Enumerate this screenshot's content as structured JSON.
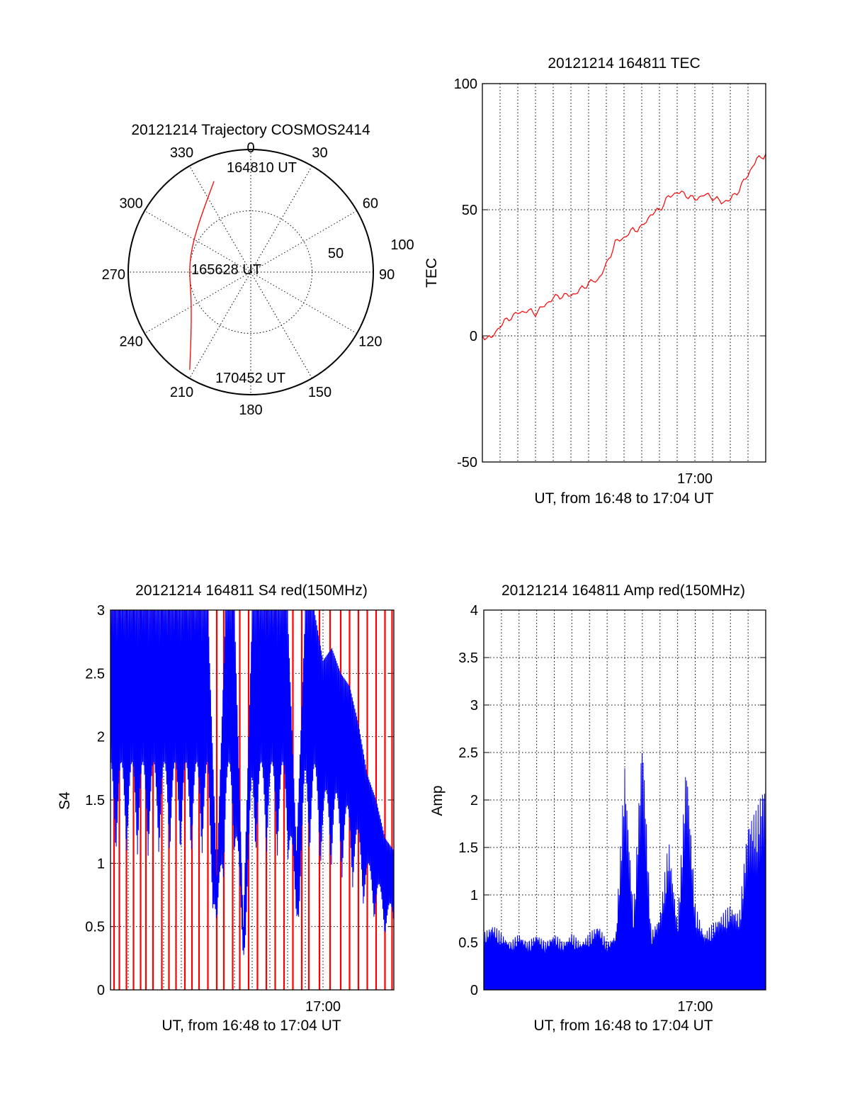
{
  "colors": {
    "red": "#ff0000",
    "blue": "#0000ff",
    "black": "#000000"
  },
  "chart_data": [
    {
      "type": "polar",
      "title": "20121214 Trajectory COSMOS2414",
      "angle_labels": [
        "0",
        "30",
        "60",
        "90",
        "120",
        "150",
        "180",
        "210",
        "240",
        "270",
        "300",
        "330"
      ],
      "radial_labels": [
        "50",
        "100"
      ],
      "radial_range": [
        0,
        100
      ],
      "grid": true,
      "annotations": [
        "164810 UT",
        "165628 UT",
        "170452 UT"
      ],
      "series": [
        {
          "color": "#ff0000",
          "points": [
            {
              "az": 338,
              "r": 80
            },
            {
              "az": 320,
              "r": 62
            },
            {
              "az": 302,
              "r": 54
            },
            {
              "az": 286,
              "r": 51
            },
            {
              "az": 270,
              "r": 50
            },
            {
              "az": 254,
              "r": 51
            },
            {
              "az": 240,
              "r": 56
            },
            {
              "az": 224,
              "r": 70
            },
            {
              "az": 212,
              "r": 94
            }
          ]
        }
      ]
    },
    {
      "type": "line",
      "title": "20121214 164811 TEC",
      "ylabel": "TEC",
      "xlabel": "UT, from 16:48 to 17:04 UT",
      "xlim": [
        0,
        16
      ],
      "ylim": [
        -50,
        100
      ],
      "yticks": [
        "-50",
        "0",
        "50",
        "100"
      ],
      "xticks": [
        {
          "x": 12,
          "label": "17:00"
        }
      ],
      "grid": true,
      "series": [
        {
          "color": "#ff0000",
          "x": [
            0,
            0.5,
            1,
            1.5,
            2,
            2.5,
            3,
            3.5,
            4,
            4.5,
            5,
            5.5,
            6,
            6.5,
            7,
            7.5,
            8,
            8.5,
            9,
            9.5,
            10,
            10.5,
            11,
            11.5,
            12,
            12.5,
            13,
            13.5,
            14,
            14.5,
            15,
            15.5,
            16
          ],
          "y": [
            0,
            -1,
            4,
            7,
            9,
            10,
            9,
            12,
            15,
            16,
            16,
            18,
            21,
            22,
            28,
            37,
            39,
            42,
            43,
            48,
            50,
            55,
            57,
            56,
            54,
            56,
            55,
            53,
            54,
            58,
            64,
            70,
            72
          ]
        }
      ]
    },
    {
      "type": "bar",
      "title": "20121214 164811 S4 red(150MHz)",
      "ylabel": "S4",
      "xlabel": "UT, from 16:48 to 17:04 UT",
      "xlim": [
        0,
        16
      ],
      "ylim": [
        0,
        3
      ],
      "yticks": [
        "0",
        "0.5",
        "1",
        "1.5",
        "2",
        "2.5",
        "3"
      ],
      "xticks": [
        {
          "x": 12,
          "label": "17:00"
        }
      ],
      "grid": true,
      "series": [
        {
          "color": "#ff0000",
          "x": [
            0.2,
            0.5,
            0.9,
            1.3,
            1.7,
            2.0,
            2.4,
            2.9,
            3.3,
            3.7,
            4.2,
            4.6,
            5.0,
            5.5,
            6.0,
            6.4,
            6.9,
            7.3,
            7.8,
            8.3,
            8.8,
            9.3,
            9.8,
            10.3,
            10.8,
            11.2,
            11.8,
            12.4,
            13.0,
            13.5,
            14.0,
            14.5,
            15.0,
            15.5,
            15.9
          ],
          "y": [
            3,
            3,
            3,
            3,
            3,
            3,
            3,
            3,
            3,
            3,
            3,
            3,
            3,
            3,
            3,
            3,
            3,
            3,
            3,
            3,
            3,
            3,
            3,
            3,
            3,
            3,
            3,
            3,
            3,
            3,
            3,
            3,
            3,
            3,
            3
          ]
        },
        {
          "color": "#0000ff",
          "x": [
            0,
            0.5,
            1,
            1.5,
            2,
            2.5,
            3,
            3.5,
            4,
            4.5,
            5,
            5.5,
            6,
            6.5,
            7,
            7.5,
            8,
            8.5,
            9,
            9.5,
            10,
            10.5,
            11,
            11.5,
            12,
            12.5,
            13,
            13.5,
            14,
            14.5,
            15,
            15.5,
            16
          ],
          "y": [
            3,
            3,
            3,
            3,
            3,
            3,
            3,
            3,
            3,
            3,
            3,
            3,
            0.9,
            3,
            3,
            0.5,
            3,
            3,
            3,
            3,
            3,
            1.1,
            3,
            3,
            2.6,
            2.7,
            2.5,
            2.4,
            2.1,
            1.7,
            1.5,
            1.2,
            1.1
          ]
        }
      ]
    },
    {
      "type": "bar",
      "title": "20121214 164811 Amp red(150MHz)",
      "ylabel": "Amp",
      "xlabel": "UT, from 16:48 to 17:04 UT",
      "xlim": [
        0,
        16
      ],
      "ylim": [
        0,
        4
      ],
      "yticks": [
        "0",
        "0.5",
        "1",
        "1.5",
        "2",
        "2.5",
        "3",
        "3.5",
        "4"
      ],
      "xticks": [
        {
          "x": 12,
          "label": "17:00"
        }
      ],
      "grid": true,
      "series": [
        {
          "color": "#0000ff",
          "x": [
            0,
            0.5,
            1,
            1.5,
            2,
            2.5,
            3,
            3.5,
            4,
            4.5,
            5,
            5.5,
            6,
            6.5,
            7,
            7.5,
            8,
            8.5,
            9,
            9.5,
            10,
            10.5,
            11,
            11.5,
            12,
            12.5,
            13,
            13.5,
            14,
            14.5,
            15,
            15.5,
            16
          ],
          "y": [
            0.6,
            0.7,
            0.6,
            0.5,
            0.6,
            0.5,
            0.6,
            0.5,
            0.6,
            0.5,
            0.6,
            0.5,
            0.6,
            0.7,
            0.5,
            0.6,
            2.4,
            0.8,
            2.8,
            0.6,
            0.8,
            1.6,
            0.7,
            2.5,
            0.9,
            0.6,
            0.7,
            0.8,
            0.9,
            0.8,
            1.8,
            1.9,
            2.3
          ]
        }
      ]
    }
  ]
}
